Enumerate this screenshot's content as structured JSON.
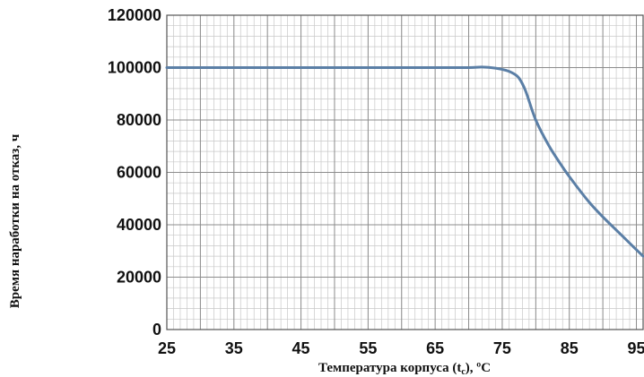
{
  "chart_data": {
    "type": "line",
    "xlabel": "Температура корпуса (t",
    "xlabel_sub": "c",
    "xlabel_suffix": "), ºC",
    "ylabel": "Время наработки на отказ, ч",
    "xlim": [
      25,
      96
    ],
    "ylim": [
      0,
      120000
    ],
    "x_ticks": [
      "25",
      "35",
      "45",
      "55",
      "65",
      "75",
      "85",
      "95"
    ],
    "y_ticks": [
      "0",
      "20000",
      "40000",
      "60000",
      "80000",
      "100000",
      "120000"
    ],
    "grid": true,
    "series": [
      {
        "color": "#5b7fa6",
        "points": [
          [
            25,
            100000
          ],
          [
            30,
            100000
          ],
          [
            35,
            100000
          ],
          [
            40,
            100000
          ],
          [
            45,
            100000
          ],
          [
            50,
            100000
          ],
          [
            55,
            100000
          ],
          [
            60,
            100000
          ],
          [
            65,
            100000
          ],
          [
            70,
            100000
          ],
          [
            72,
            100200
          ],
          [
            74,
            99800
          ],
          [
            75.5,
            99000
          ],
          [
            76.5,
            98000
          ],
          [
            77.5,
            96000
          ],
          [
            78.5,
            91000
          ],
          [
            80,
            80000
          ],
          [
            82,
            70000
          ],
          [
            84,
            62000
          ],
          [
            86,
            55000
          ],
          [
            88,
            48500
          ],
          [
            90,
            43000
          ],
          [
            92,
            38000
          ],
          [
            94,
            33000
          ],
          [
            96,
            28000
          ]
        ]
      }
    ]
  }
}
